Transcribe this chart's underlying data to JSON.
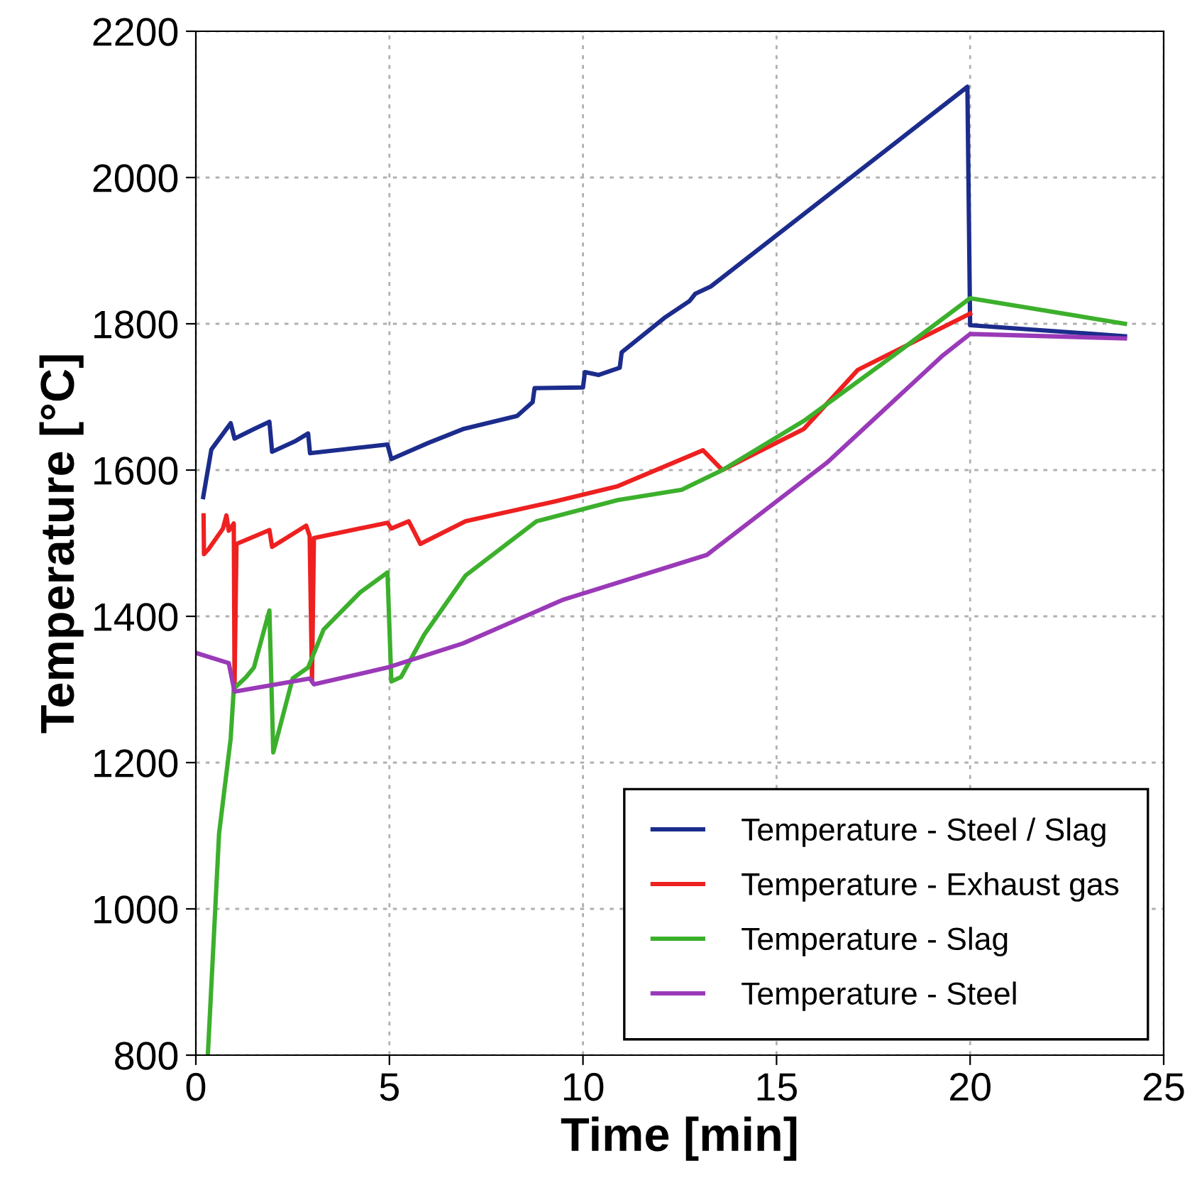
{
  "chart_data": {
    "type": "line",
    "xlabel": "Time [min]",
    "ylabel": "Temperature [°C]",
    "xlim": [
      0,
      25
    ],
    "xticks": [
      0,
      5,
      10,
      15,
      20,
      25
    ],
    "ylim": [
      800,
      2200
    ],
    "yticks": [
      800,
      1000,
      1200,
      1400,
      1600,
      1800,
      2000,
      2200
    ],
    "grid": true,
    "legend": "bottom right",
    "marker": "none",
    "line_style": "solid",
    "series": [
      {
        "name": "Temperature - Steel / Slag",
        "color": "#1c2c8c",
        "x": [
          0.19,
          0.4,
          0.9,
          1.0,
          1.5,
          1.9,
          1.97,
          2.55,
          2.9,
          2.95,
          4.95,
          5.05,
          6.0,
          6.9,
          8.3,
          8.7,
          8.75,
          10.0,
          10.05,
          10.4,
          10.95,
          11.0,
          12.1,
          12.75,
          12.9,
          13.3,
          19.93,
          20.0,
          24.0
        ],
        "values": [
          1563,
          1628,
          1664,
          1643,
          1656,
          1666,
          1625,
          1639,
          1650,
          1623,
          1635,
          1615,
          1637,
          1656,
          1674,
          1693,
          1712,
          1713,
          1734,
          1730,
          1740,
          1761,
          1808,
          1831,
          1841,
          1851,
          2124,
          1798,
          1783
        ]
      },
      {
        "name": "Temperature - Exhaust gas",
        "color": "#ee2020",
        "x": [
          0.2,
          0.21,
          0.33,
          0.7,
          0.79,
          0.85,
          0.98,
          1.0,
          1.05,
          1.9,
          1.97,
          2.85,
          2.94,
          3.0,
          3.05,
          4.95,
          5.05,
          5.5,
          5.8,
          6.97,
          9.27,
          10.9,
          13.1,
          13.6,
          15.7,
          17.1,
          20.0
        ],
        "values": [
          1538,
          1485,
          1492,
          1520,
          1538,
          1517,
          1527,
          1305,
          1499,
          1518,
          1495,
          1524,
          1510,
          1311,
          1507,
          1528,
          1520,
          1530,
          1499,
          1530,
          1557,
          1578,
          1627,
          1600,
          1656,
          1737,
          1814
        ]
      },
      {
        "name": "Temperature - Slag",
        "color": "#3cb02c",
        "x": [
          0.31,
          0.6,
          0.9,
          0.98,
          1.3,
          1.5,
          1.9,
          2.0,
          2.5,
          2.9,
          3.3,
          4.25,
          4.95,
          5.05,
          5.3,
          5.9,
          6.97,
          8.8,
          10.9,
          12.55,
          13.6,
          15.7,
          18.03,
          20.0,
          24.0
        ],
        "values": [
          800,
          1103,
          1233,
          1301,
          1317,
          1330,
          1408,
          1214,
          1315,
          1330,
          1382,
          1433,
          1460,
          1311,
          1317,
          1375,
          1456,
          1530,
          1559,
          1573,
          1600,
          1667,
          1757,
          1835,
          1800
        ]
      },
      {
        "name": "Temperature - Steel",
        "color": "#9a3ab8",
        "x": [
          0.0,
          0.85,
          1.0,
          2.95,
          3.05,
          4.95,
          6.9,
          9.5,
          13.2,
          16.3,
          19.3,
          20.0,
          24.0
        ],
        "values": [
          1350,
          1336,
          1297,
          1315,
          1307,
          1330,
          1363,
          1423,
          1484,
          1610,
          1757,
          1786,
          1780
        ]
      }
    ]
  }
}
